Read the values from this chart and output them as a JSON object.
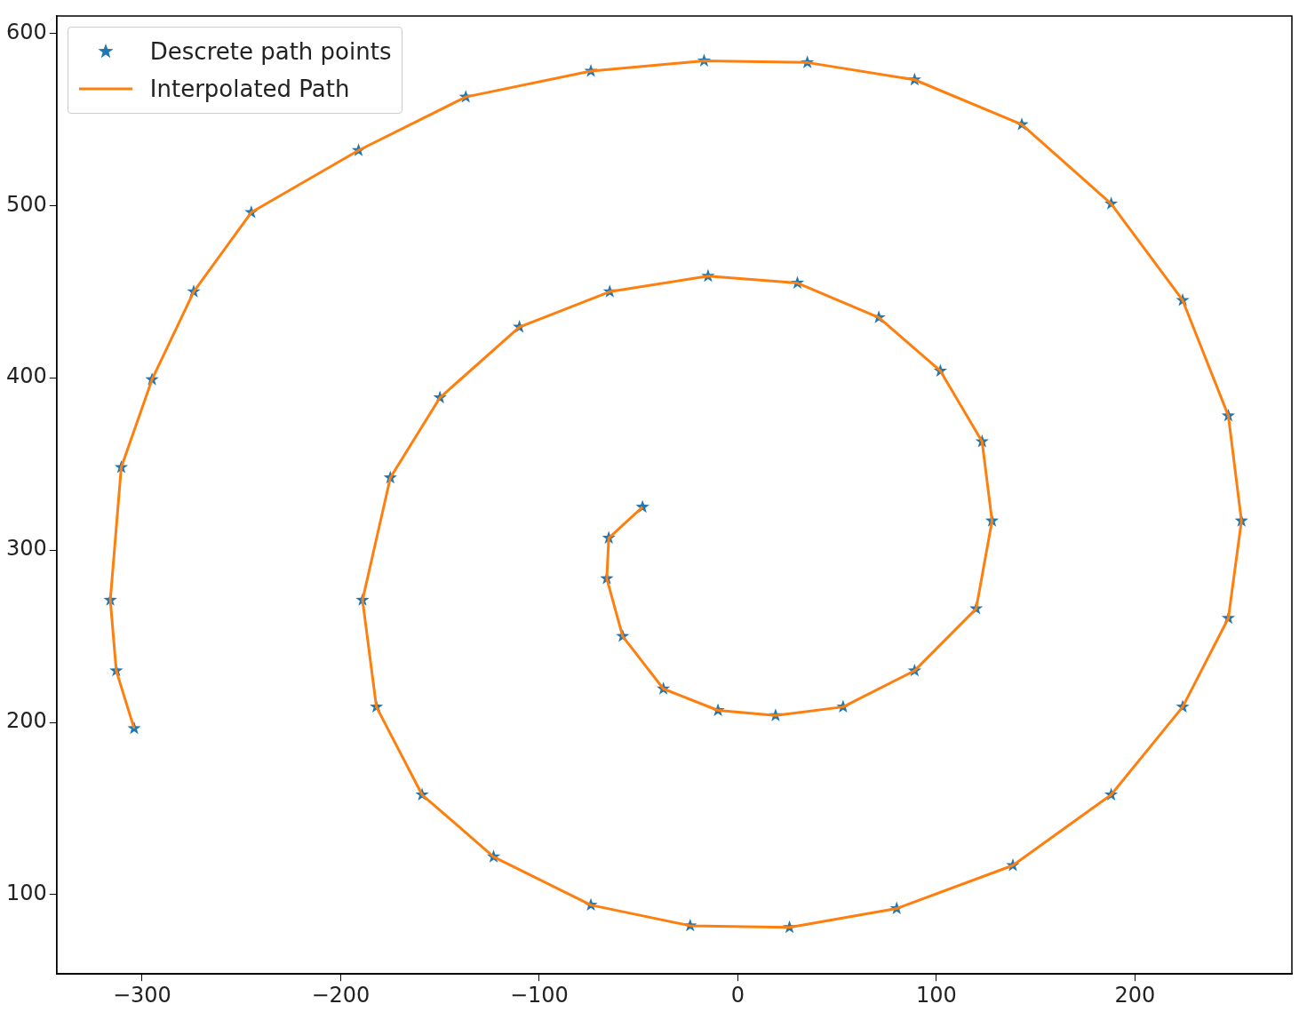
{
  "chart_data": {
    "type": "scatter",
    "legend": "top left",
    "grid": false,
    "xlim": [
      -343,
      279
    ],
    "ylim": [
      54,
      610
    ],
    "xticks": [
      -300,
      -200,
      -100,
      0,
      100,
      200
    ],
    "yticks": [
      100,
      200,
      300,
      400,
      500,
      600
    ],
    "series": [
      {
        "name": "Descrete path points",
        "type": "scatter",
        "marker": "star",
        "color": "#1f77b4",
        "x": [
          -48,
          -65,
          -66,
          -58,
          -37.5,
          -10,
          19,
          53,
          89,
          120,
          128,
          123,
          102,
          71,
          30,
          -15,
          -64.5,
          -110,
          -150,
          -175,
          -189,
          -182,
          -159,
          -123,
          -74,
          -24,
          26,
          80,
          138.5,
          188,
          224,
          247,
          253.6,
          247,
          224,
          188,
          143,
          89,
          35,
          -17,
          -74,
          -137,
          -191,
          -245,
          -274,
          -295,
          -310.5,
          -316,
          -313,
          -304
        ],
        "values": [
          325,
          307,
          283.5,
          250,
          219.5,
          207,
          204,
          209,
          230,
          266,
          317,
          363,
          404,
          435,
          455,
          459,
          450,
          429.5,
          388.5,
          342,
          271,
          209,
          158,
          122,
          94,
          82,
          81,
          92,
          117,
          158,
          209,
          260.5,
          317,
          378,
          445,
          501,
          547,
          573,
          583,
          584,
          578,
          563,
          532,
          496,
          450,
          399,
          348,
          271,
          230,
          196.5
        ]
      },
      {
        "name": "Interpolated Path",
        "type": "line",
        "marker": "none",
        "color": "#ff7f0e",
        "x": [
          -48,
          -65,
          -66,
          -58,
          -37.5,
          -10,
          19,
          53,
          89,
          120,
          128,
          123,
          102,
          71,
          30,
          -15,
          -64.5,
          -110,
          -150,
          -175,
          -189,
          -182,
          -159,
          -123,
          -74,
          -24,
          26,
          80,
          138.5,
          188,
          224,
          247,
          253.6,
          247,
          224,
          188,
          143,
          89,
          35,
          -17,
          -74,
          -137,
          -191,
          -245,
          -274,
          -295,
          -310.5,
          -316,
          -313,
          -304
        ],
        "values": [
          325,
          307,
          283.5,
          250,
          219.5,
          207,
          204,
          209,
          230,
          266,
          317,
          363,
          404,
          435,
          455,
          459,
          450,
          429.5,
          388.5,
          342,
          271,
          209,
          158,
          122,
          94,
          82,
          81,
          92,
          117,
          158,
          209,
          260.5,
          317,
          378,
          445,
          501,
          547,
          573,
          583,
          584,
          578,
          563,
          532,
          496,
          450,
          399,
          348,
          271,
          230,
          196.5
        ]
      }
    ]
  }
}
